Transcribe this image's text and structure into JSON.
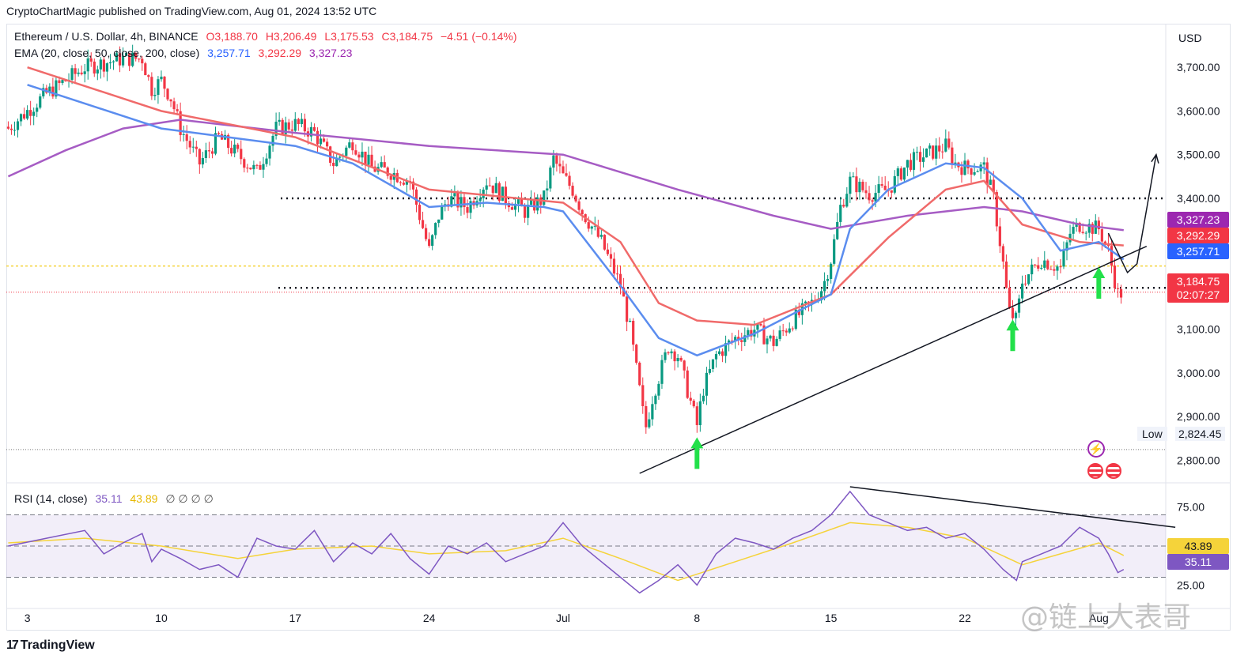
{
  "publisher": "CryptoChartMagic published on TradingView.com, Aug 01, 2024 13:52 UTC",
  "legend": {
    "symbol": "Ethereum / U.S. Dollar, 4h, BINANCE",
    "o": "O3,188.70",
    "h": "H3,206.49",
    "l": "L3,175.53",
    "c": "C3,184.75",
    "change": "−4.51 (−0.14%)",
    "ema_label": "EMA (20, close, 50, close, 200, close)",
    "ema20": "3,257.71",
    "ema50": "3,292.29",
    "ema200": "3,327.23",
    "rsi_label": "RSI (14, close)",
    "rsi_value": "35.11",
    "rsi_ma": "43.89",
    "rsi_extra": "∅ ∅ ∅ ∅"
  },
  "price_axis": {
    "currency": "USD",
    "ticks": [
      "3,700.00",
      "3,600.00",
      "3,500.00",
      "3,400.00",
      "3,100.00",
      "3,000.00",
      "2,900.00",
      "2,800.00"
    ],
    "tick_values": [
      3700,
      3600,
      3500,
      3400,
      3100,
      3000,
      2900,
      2800
    ]
  },
  "price_tags": {
    "ema200": "3,327.23",
    "ema50": "3,292.29",
    "ema20": "3,257.71",
    "close": "3,184.75",
    "countdown": "02:07:27",
    "low_label": "Low",
    "low_value": "2,824.45"
  },
  "rsi_axis": {
    "ticks": [
      "75.00",
      "25.00"
    ],
    "tick_values": [
      75,
      25
    ],
    "rsi_tag": "35.11",
    "ma_tag": "43.89"
  },
  "time_axis": {
    "labels": [
      "3",
      "10",
      "17",
      "24",
      "Jul",
      "8",
      "15",
      "22",
      "Aug"
    ],
    "positions": [
      0,
      7,
      14,
      21,
      28,
      35,
      42,
      49,
      56
    ]
  },
  "footer": {
    "logo": "17",
    "brand": "TradingView"
  },
  "watermark": "@链上大表哥",
  "colors": {
    "up": "#089981",
    "down": "#f23645",
    "ema20": "#5b8def",
    "ema50": "#f06a6a",
    "ema200": "#a65cc4",
    "rsi": "#7e57c2",
    "rsi_ma": "#f5d33a"
  },
  "chart_data": {
    "type": "candlestick",
    "timeframe": "4h",
    "ylim": [
      2750,
      3800
    ],
    "rsi_ylim": [
      10,
      90
    ],
    "ema20": [
      [
        0,
        3660
      ],
      [
        7,
        3560
      ],
      [
        14,
        3520
      ],
      [
        17,
        3480
      ],
      [
        21,
        3380
      ],
      [
        24,
        3390
      ],
      [
        27,
        3380
      ],
      [
        28,
        3370
      ],
      [
        31,
        3200
      ],
      [
        33,
        3080
      ],
      [
        35,
        3040
      ],
      [
        38,
        3090
      ],
      [
        42,
        3180
      ],
      [
        43,
        3330
      ],
      [
        45,
        3420
      ],
      [
        48,
        3480
      ],
      [
        50,
        3470
      ],
      [
        52,
        3400
      ],
      [
        54,
        3280
      ],
      [
        56,
        3300
      ],
      [
        57.3,
        3260
      ]
    ],
    "ema50": [
      [
        0,
        3700
      ],
      [
        7,
        3600
      ],
      [
        14,
        3540
      ],
      [
        21,
        3420
      ],
      [
        28,
        3390
      ],
      [
        31,
        3300
      ],
      [
        33,
        3160
      ],
      [
        35,
        3120
      ],
      [
        38,
        3110
      ],
      [
        42,
        3180
      ],
      [
        45,
        3310
      ],
      [
        48,
        3420
      ],
      [
        50,
        3440
      ],
      [
        52,
        3340
      ],
      [
        55,
        3300
      ],
      [
        57.3,
        3292
      ]
    ],
    "ema200": [
      [
        -1,
        3450
      ],
      [
        2,
        3510
      ],
      [
        5,
        3560
      ],
      [
        8,
        3580
      ],
      [
        14,
        3550
      ],
      [
        21,
        3520
      ],
      [
        28,
        3500
      ],
      [
        34,
        3420
      ],
      [
        39,
        3360
      ],
      [
        42,
        3330
      ],
      [
        46,
        3360
      ],
      [
        50,
        3380
      ],
      [
        52,
        3370
      ],
      [
        55,
        3340
      ],
      [
        57.3,
        3327
      ]
    ],
    "close_path": [
      [
        -1,
        3560
      ],
      [
        1,
        3640
      ],
      [
        3,
        3700
      ],
      [
        5,
        3720
      ],
      [
        6,
        3720
      ],
      [
        6.5,
        3650
      ],
      [
        7,
        3670
      ],
      [
        7.5,
        3630
      ],
      [
        8,
        3560
      ],
      [
        9,
        3480
      ],
      [
        10,
        3540
      ],
      [
        11,
        3500
      ],
      [
        12,
        3460
      ],
      [
        13,
        3560
      ],
      [
        14,
        3570
      ],
      [
        15,
        3550
      ],
      [
        16,
        3480
      ],
      [
        17,
        3530
      ],
      [
        18,
        3470
      ],
      [
        19,
        3460
      ],
      [
        20,
        3440
      ],
      [
        20.5,
        3360
      ],
      [
        21,
        3280
      ],
      [
        21.5,
        3360
      ],
      [
        22,
        3400
      ],
      [
        23,
        3380
      ],
      [
        24,
        3440
      ],
      [
        25,
        3400
      ],
      [
        26,
        3370
      ],
      [
        27,
        3400
      ],
      [
        27.5,
        3490
      ],
      [
        28,
        3450
      ],
      [
        28.5,
        3420
      ],
      [
        29,
        3370
      ],
      [
        30,
        3300
      ],
      [
        31,
        3200
      ],
      [
        31.5,
        3100
      ],
      [
        32,
        2960
      ],
      [
        32.3,
        2870
      ],
      [
        32.7,
        2950
      ],
      [
        33,
        2990
      ],
      [
        33.5,
        3060
      ],
      [
        34,
        3040
      ],
      [
        34.5,
        2960
      ],
      [
        35,
        2880
      ],
      [
        35.3,
        2960
      ],
      [
        36,
        3040
      ],
      [
        37,
        3080
      ],
      [
        38,
        3100
      ],
      [
        39,
        3070
      ],
      [
        40,
        3120
      ],
      [
        41,
        3160
      ],
      [
        41.6,
        3200
      ],
      [
        42,
        3260
      ],
      [
        42.5,
        3380
      ],
      [
        43,
        3440
      ],
      [
        44,
        3410
      ],
      [
        45,
        3420
      ],
      [
        46,
        3480
      ],
      [
        47,
        3500
      ],
      [
        48,
        3520
      ],
      [
        48.5,
        3480
      ],
      [
        49,
        3470
      ],
      [
        50,
        3470
      ],
      [
        50.5,
        3400
      ],
      [
        51,
        3250
      ],
      [
        51.3,
        3140
      ],
      [
        51.7,
        3120
      ],
      [
        52,
        3210
      ],
      [
        53,
        3260
      ],
      [
        54,
        3240
      ],
      [
        54.5,
        3320
      ],
      [
        55,
        3340
      ],
      [
        56,
        3330
      ],
      [
        56.5,
        3280
      ],
      [
        57,
        3180
      ],
      [
        57.3,
        3185
      ]
    ],
    "rsi": [
      [
        -1,
        50
      ],
      [
        1,
        55
      ],
      [
        3,
        60
      ],
      [
        4,
        45
      ],
      [
        5,
        52
      ],
      [
        6,
        58
      ],
      [
        6.5,
        40
      ],
      [
        7,
        48
      ],
      [
        8,
        42
      ],
      [
        9,
        35
      ],
      [
        10,
        38
      ],
      [
        11,
        30
      ],
      [
        12,
        55
      ],
      [
        13,
        50
      ],
      [
        14,
        48
      ],
      [
        15,
        60
      ],
      [
        16,
        40
      ],
      [
        17,
        52
      ],
      [
        18,
        45
      ],
      [
        19,
        58
      ],
      [
        20,
        42
      ],
      [
        21,
        32
      ],
      [
        22,
        50
      ],
      [
        23,
        45
      ],
      [
        24,
        52
      ],
      [
        25,
        40
      ],
      [
        27,
        50
      ],
      [
        28,
        65
      ],
      [
        29,
        50
      ],
      [
        30,
        40
      ],
      [
        31,
        30
      ],
      [
        32,
        20
      ],
      [
        33,
        28
      ],
      [
        34,
        38
      ],
      [
        35,
        25
      ],
      [
        36,
        45
      ],
      [
        37,
        55
      ],
      [
        38,
        52
      ],
      [
        39,
        48
      ],
      [
        40,
        55
      ],
      [
        41,
        60
      ],
      [
        42,
        70
      ],
      [
        43,
        85
      ],
      [
        44,
        70
      ],
      [
        45,
        65
      ],
      [
        46,
        60
      ],
      [
        47,
        62
      ],
      [
        48,
        55
      ],
      [
        49,
        58
      ],
      [
        50,
        48
      ],
      [
        51,
        35
      ],
      [
        51.7,
        28
      ],
      [
        52,
        40
      ],
      [
        53,
        45
      ],
      [
        54,
        50
      ],
      [
        55,
        62
      ],
      [
        56,
        55
      ],
      [
        56.5,
        45
      ],
      [
        57,
        33
      ],
      [
        57.3,
        35
      ]
    ],
    "rsi_ma": [
      [
        -1,
        52
      ],
      [
        3,
        55
      ],
      [
        7,
        50
      ],
      [
        11,
        42
      ],
      [
        14,
        48
      ],
      [
        18,
        50
      ],
      [
        21,
        45
      ],
      [
        25,
        47
      ],
      [
        28,
        55
      ],
      [
        31,
        42
      ],
      [
        34,
        28
      ],
      [
        37,
        40
      ],
      [
        40,
        52
      ],
      [
        43,
        65
      ],
      [
        46,
        62
      ],
      [
        49,
        55
      ],
      [
        52,
        38
      ],
      [
        54,
        45
      ],
      [
        56,
        52
      ],
      [
        57.3,
        44
      ]
    ],
    "levels": {
      "resistance_dotted": 3400,
      "support_dotted": 3195,
      "yellow_dotted": 3245,
      "red_dotted_close": 3185,
      "low": 2824.45
    },
    "trendline": [
      [
        32,
        2770
      ],
      [
        58.5,
        3290
      ]
    ],
    "rsi_trendline": [
      [
        43,
        88
      ],
      [
        60,
        62
      ]
    ],
    "projection": [
      [
        56.5,
        3320
      ],
      [
        57.5,
        3230
      ],
      [
        58,
        3250
      ],
      [
        59,
        3500
      ]
    ],
    "arrows_at": [
      [
        35,
        2780
      ],
      [
        51.5,
        3050
      ],
      [
        56,
        3170
      ]
    ]
  }
}
